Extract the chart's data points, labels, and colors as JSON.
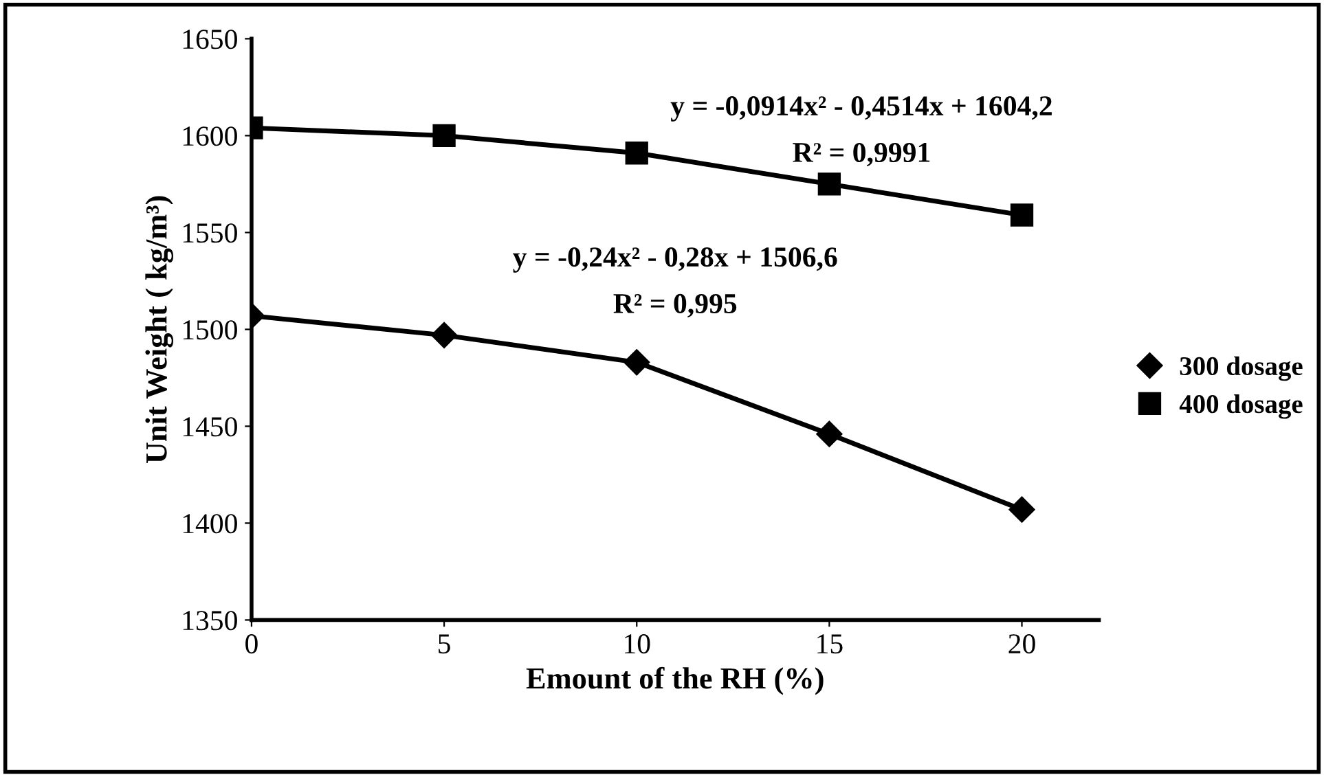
{
  "chart_data": {
    "type": "line",
    "xlabel": "Emount of the RH (%)",
    "ylabel": "Unit Weight ( kg/m³)",
    "x": [
      0,
      5,
      10,
      15,
      20
    ],
    "series": [
      {
        "name": "300 dosage",
        "color": "#000000",
        "marker": "diamond",
        "values": [
          1507,
          1497,
          1483,
          1446,
          1407
        ]
      },
      {
        "name": "400 dosage",
        "color": "#000000",
        "marker": "square",
        "values": [
          1604,
          1600,
          1591,
          1575,
          1559
        ]
      }
    ],
    "xlim": [
      0,
      22
    ],
    "xticks": [
      0,
      5,
      10,
      15,
      20
    ],
    "ylim": [
      1350,
      1650
    ],
    "yticks": [
      1350,
      1400,
      1450,
      1500,
      1550,
      1600,
      1650
    ],
    "annotations": [
      "y = -0,0914x² - 0,4514x + 1604,2",
      "R² = 0,9991",
      "y = -0,24x² - 0,28x + 1506,6",
      "R² = 0,995"
    ],
    "grid": false,
    "legend": "right",
    "line_style": "solid"
  }
}
